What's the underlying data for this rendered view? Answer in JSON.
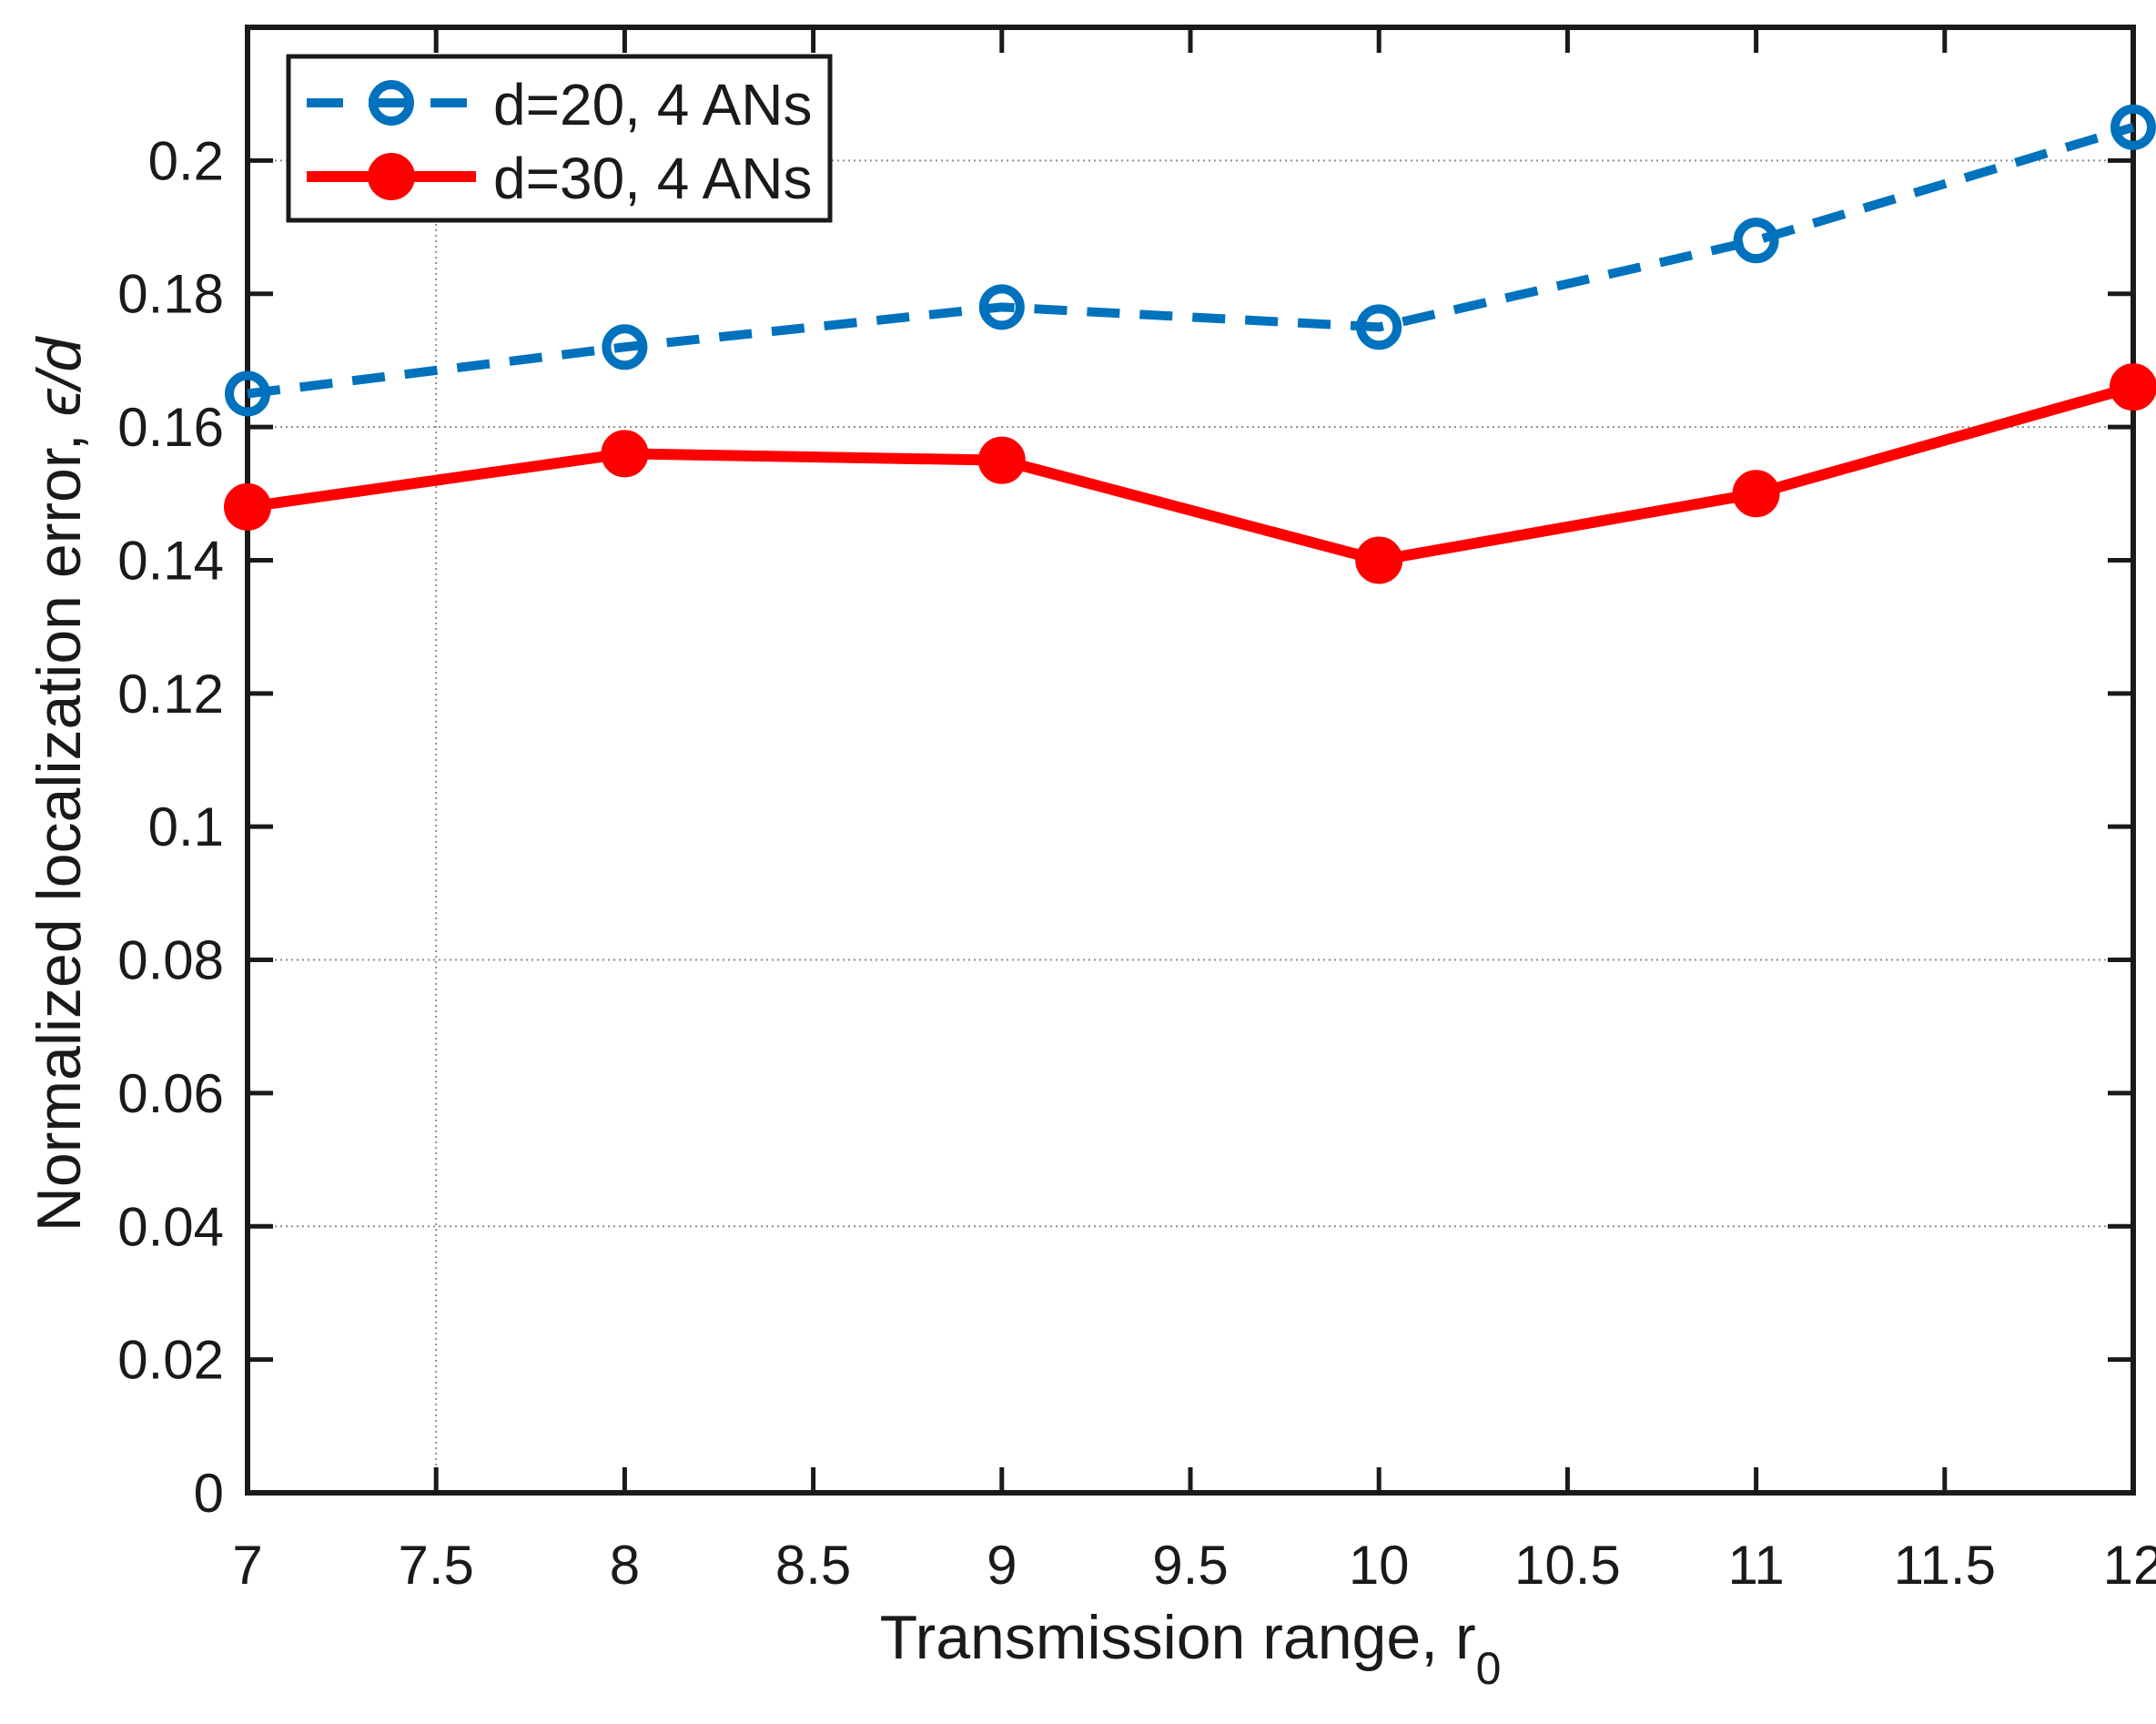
{
  "page": {
    "background": "#ffffff"
  },
  "chart_data": {
    "type": "line",
    "title": "",
    "x": [
      7,
      8,
      9,
      10,
      11,
      12
    ],
    "series": [
      {
        "name": "d=20, 4 ANs",
        "color": "#0072BD",
        "line_style": "dashed",
        "marker": "open-circle",
        "values": [
          0.165,
          0.172,
          0.178,
          0.175,
          0.188,
          0.205
        ]
      },
      {
        "name": "d=30, 4 ANs",
        "color": "#FF0000",
        "line_style": "solid",
        "marker": "filled-circle",
        "values": [
          0.148,
          0.156,
          0.155,
          0.14,
          0.15,
          0.166
        ]
      }
    ],
    "xlabel": "Transmission range, r",
    "xlabel_sub": "0",
    "ylabel_prefix": "Normalized localization error, ",
    "ylabel_math": "ϵ/d",
    "xlim": [
      7,
      12
    ],
    "ylim": [
      0,
      0.22
    ],
    "xticks": [
      "7",
      "7.5",
      "8",
      "8.5",
      "9",
      "9.5",
      "10",
      "10.5",
      "11",
      "11.5",
      "12"
    ],
    "yticks": [
      "0",
      "0.02",
      "0.04",
      "0.06",
      "0.08",
      "0.1",
      "0.12",
      "0.14",
      "0.16",
      "0.18",
      "0.2"
    ],
    "grid": {
      "x_values": [
        7.5
      ],
      "y_values": [
        0.04,
        0.08,
        0.16,
        0.2
      ]
    },
    "legend": {
      "position": "top-left",
      "entries": [
        "d=20, 4 ANs",
        "d=30, 4 ANs"
      ]
    },
    "axis_color": "#1a1a1a",
    "grid_color": "#808080",
    "background_color": "#ffffff"
  }
}
